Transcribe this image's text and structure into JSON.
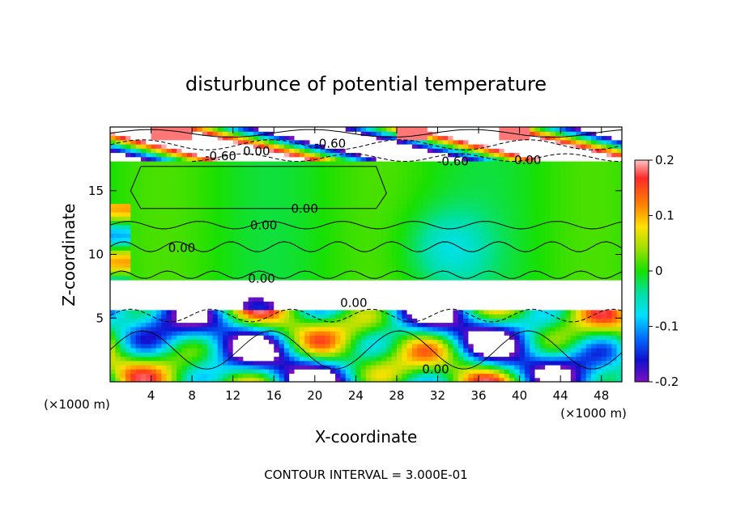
{
  "chart_data": {
    "type": "heatmap",
    "title": "disturbunce of potential temperature",
    "xlabel": "X-coordinate",
    "ylabel": "Z-coordinate",
    "x_unit": "(×1000 m)",
    "y_unit": "(×1000 m)",
    "xlim": [
      0,
      50
    ],
    "ylim": [
      0,
      20
    ],
    "x_ticks": [
      "4",
      "8",
      "12",
      "16",
      "20",
      "24",
      "28",
      "32",
      "36",
      "40",
      "44",
      "48"
    ],
    "y_ticks": [
      "5",
      "10",
      "15"
    ],
    "colorbar": {
      "min": -0.2,
      "max": 0.2,
      "tick_labels": [
        "0.2",
        "0.1",
        "0",
        "-0.1",
        "-0.2"
      ],
      "tick_values": [
        0.2,
        0.1,
        0,
        -0.1,
        -0.2
      ]
    },
    "contour_interval": "CONTOUR INTERVAL = 3.000E-01",
    "contour_labels": [
      {
        "text": "-0.60",
        "x": 21.5,
        "z": 18.7
      },
      {
        "text": "-0.60",
        "x": 10.8,
        "z": 17.7
      },
      {
        "text": "0.00",
        "x": 14.3,
        "z": 18.1
      },
      {
        "text": "-0.60",
        "x": 33.5,
        "z": 17.3
      },
      {
        "text": "0.00",
        "x": 40.8,
        "z": 17.4
      },
      {
        "text": "0.00",
        "x": 19.0,
        "z": 13.6
      },
      {
        "text": "0.00",
        "x": 15.0,
        "z": 12.3
      },
      {
        "text": "0.00",
        "x": 7.0,
        "z": 10.5
      },
      {
        "text": "0.00",
        "x": 14.8,
        "z": 8.1
      },
      {
        "text": "0.00",
        "x": 23.8,
        "z": 6.2
      },
      {
        "text": "0.00",
        "x": 31.8,
        "z": 1.0
      }
    ]
  }
}
